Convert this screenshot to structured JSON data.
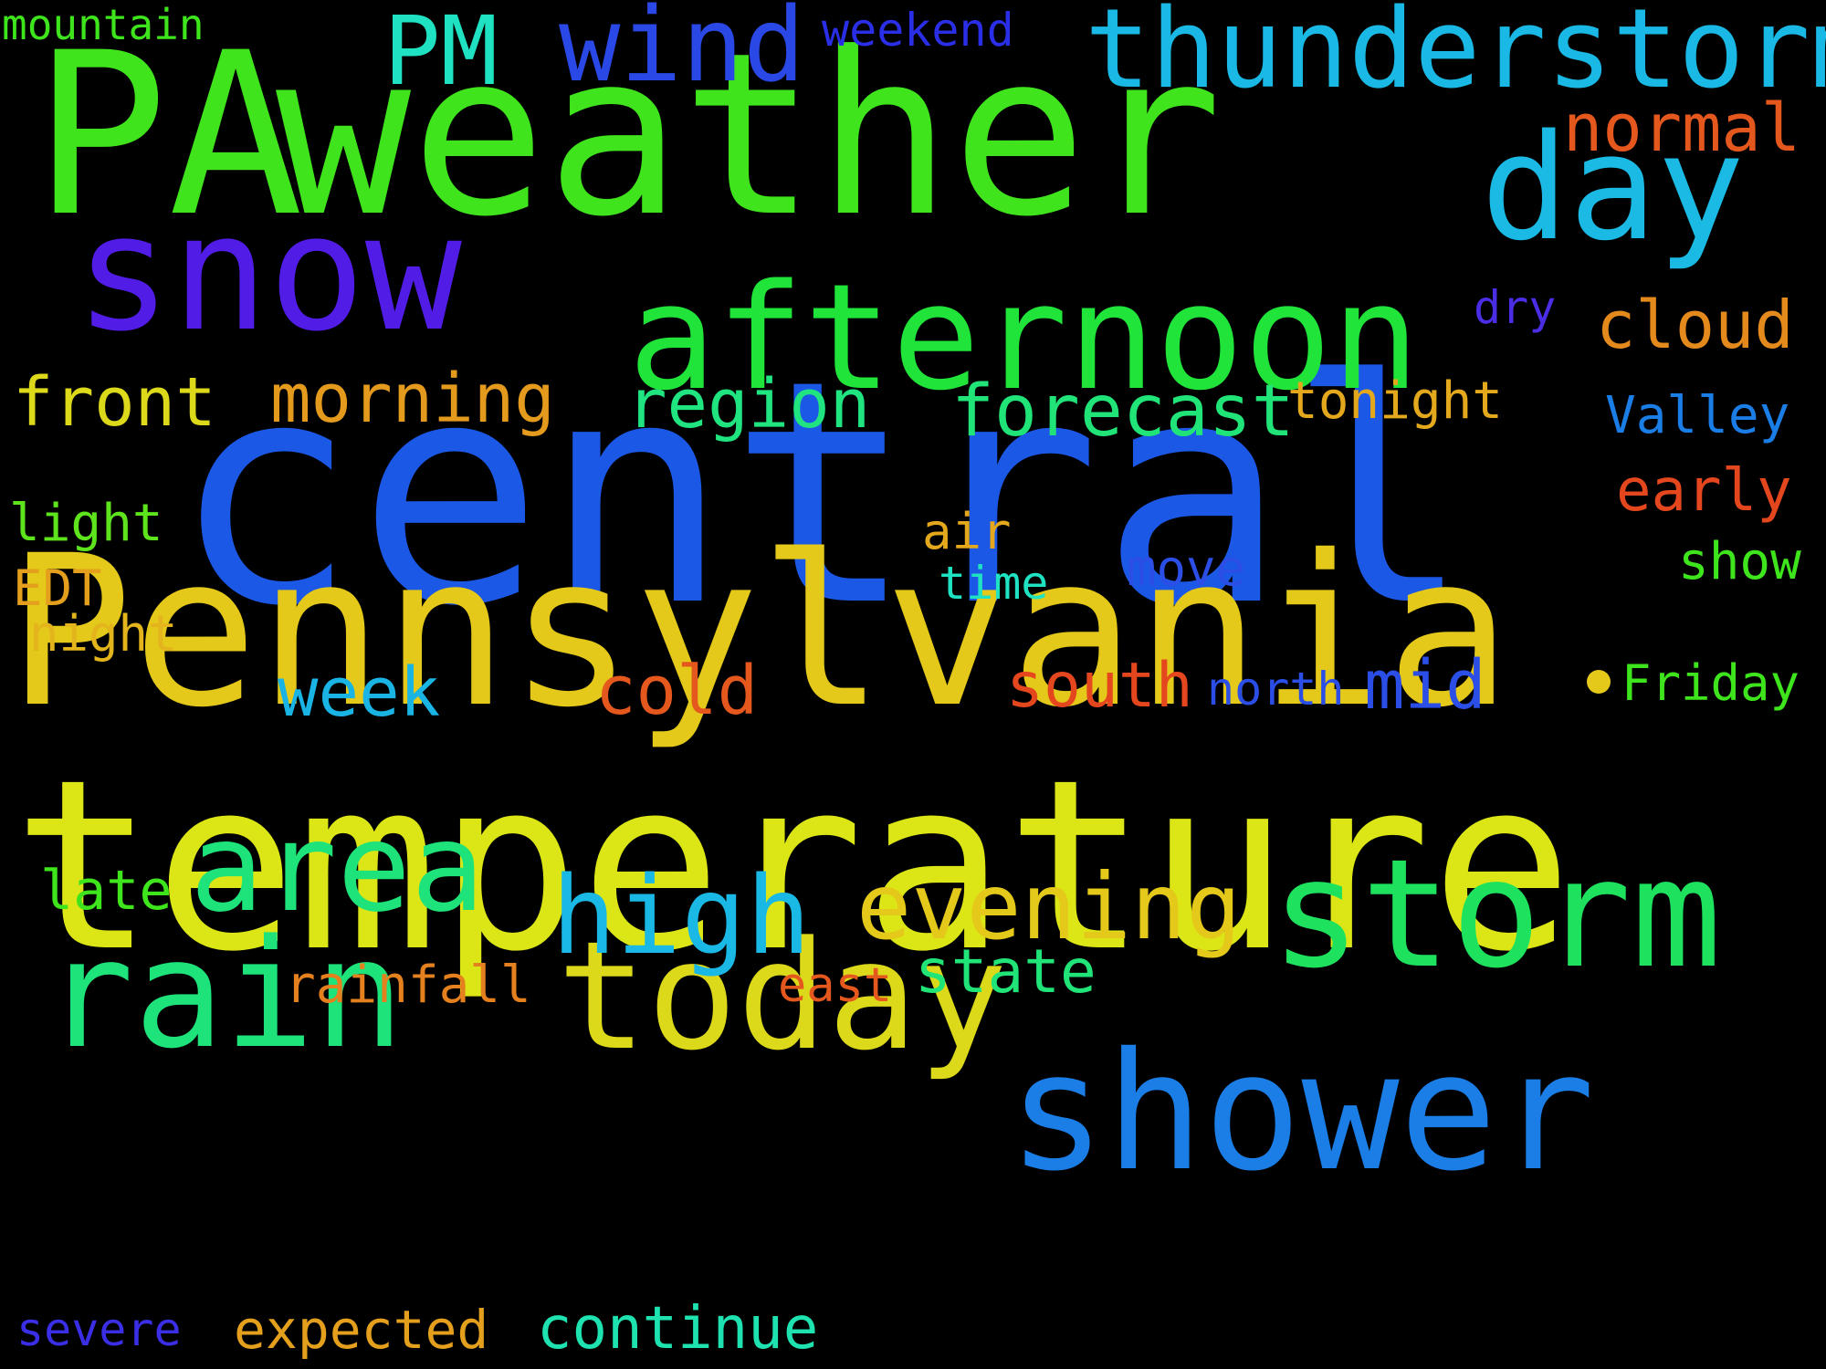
{
  "background_color": "#000000",
  "words": [
    {
      "text": "central",
      "color": "#1c58e6"
    },
    {
      "text": "Pennsylvania",
      "color": "#e4c81a"
    },
    {
      "text": "temperature",
      "color": "#dce616"
    },
    {
      "text": "weather",
      "color": "#3fe41c"
    },
    {
      "text": "PA",
      "color": "#3fe41c"
    },
    {
      "text": "snow",
      "color": "#501ce6"
    },
    {
      "text": "shower",
      "color": "#1a7ee6"
    },
    {
      "text": "afternoon",
      "color": "#20e43a"
    },
    {
      "text": "today",
      "color": "#dcd81a"
    },
    {
      "text": "rain",
      "color": "#1ee27a"
    },
    {
      "text": "storm",
      "color": "#1ee25e"
    },
    {
      "text": "area",
      "color": "#1ee27a"
    },
    {
      "text": "thunderstorm",
      "color": "#1ab8e4"
    },
    {
      "text": "day",
      "color": "#1abae4"
    },
    {
      "text": "high",
      "color": "#1ab8e4"
    },
    {
      "text": "evening",
      "color": "#e4c81a"
    },
    {
      "text": "wind",
      "color": "#2a48e6"
    },
    {
      "text": "PM",
      "color": "#1ee2c2"
    },
    {
      "text": "forecast",
      "color": "#20e478"
    },
    {
      "text": "morning",
      "color": "#e49a1c"
    },
    {
      "text": "region",
      "color": "#20e480"
    },
    {
      "text": "front",
      "color": "#dcd81a"
    },
    {
      "text": "cloud",
      "color": "#e48a1c"
    },
    {
      "text": "normal",
      "color": "#e4581e"
    },
    {
      "text": "week",
      "color": "#1ab4e4"
    },
    {
      "text": "cold",
      "color": "#e4581e"
    },
    {
      "text": "south",
      "color": "#e4461e"
    },
    {
      "text": "mid",
      "color": "#2a4ee6"
    },
    {
      "text": "state",
      "color": "#20e478"
    },
    {
      "text": "continue",
      "color": "#1ee2b0"
    },
    {
      "text": "expected",
      "color": "#e4a01c"
    },
    {
      "text": "rainfall",
      "color": "#e4801e"
    },
    {
      "text": "tonight",
      "color": "#e4a81c"
    },
    {
      "text": "Valley",
      "color": "#1a7ee6"
    },
    {
      "text": "early",
      "color": "#e4461e"
    },
    {
      "text": "light",
      "color": "#5ee41c"
    },
    {
      "text": "night",
      "color": "#e4b41c"
    },
    {
      "text": "EDT",
      "color": "#e4a01c"
    },
    {
      "text": "late",
      "color": "#3ee41c"
    },
    {
      "text": "severe",
      "color": "#3a2ee6"
    },
    {
      "text": "mountain",
      "color": "#3ee41c"
    },
    {
      "text": "weekend",
      "color": "#2a2ee6"
    },
    {
      "text": "dry",
      "color": "#4a2ee6"
    },
    {
      "text": "air",
      "color": "#e4a81c"
    },
    {
      "text": "time",
      "color": "#1ee2c2"
    },
    {
      "text": "move",
      "color": "#2a4ee6"
    },
    {
      "text": "show",
      "color": "#3ee41c"
    },
    {
      "text": "Friday",
      "color": "#3ee41c"
    },
    {
      "text": "north",
      "color": "#2a4ee6"
    },
    {
      "text": "east",
      "color": "#e4581e"
    }
  ],
  "dot_color": "#e4c81a"
}
